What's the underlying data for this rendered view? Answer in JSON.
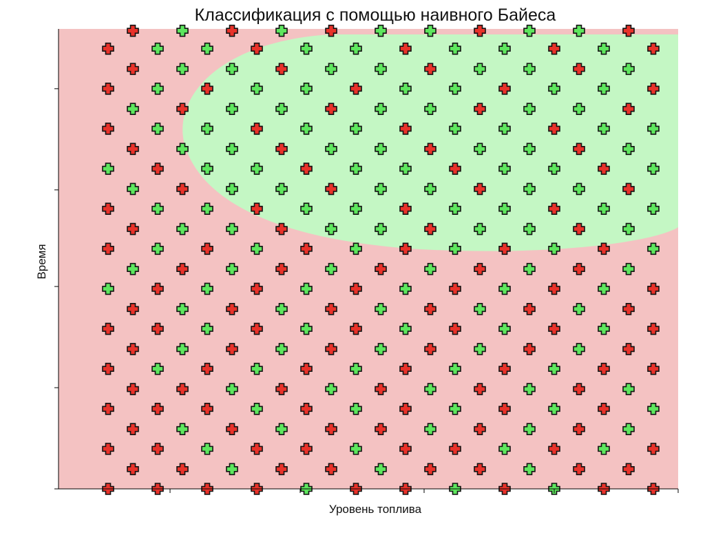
{
  "chart_data": {
    "type": "scatter",
    "title": "Классификация с помощью наивного Байеса",
    "x_label": "Уровень топлива",
    "y_label": "Время",
    "xlim": [
      0,
      100
    ],
    "ylim": [
      0,
      100
    ],
    "xticks": [
      18,
      39,
      59,
      80,
      100
    ],
    "yticks": [
      0,
      22,
      44,
      65,
      87
    ],
    "series": [
      {
        "color": "#e8322a",
        "x": [
          8,
          16,
          24,
          32,
          48,
          56,
          72,
          88,
          96,
          12,
          20,
          36,
          44,
          60,
          68,
          84,
          92,
          8,
          16,
          32,
          40,
          56,
          64,
          80,
          96,
          12,
          28,
          44,
          52,
          68,
          84,
          8,
          16,
          24,
          40,
          56,
          72,
          88,
          12,
          20,
          36,
          52,
          68,
          84,
          8,
          24,
          40,
          56,
          72,
          88,
          96,
          12,
          28,
          44,
          60,
          76,
          92,
          8,
          16,
          32,
          48,
          64,
          80,
          96,
          12,
          28,
          44,
          60,
          76,
          92,
          16,
          32,
          48,
          64,
          80,
          96,
          20,
          36,
          52,
          68,
          84,
          8,
          24,
          40,
          56,
          72,
          88,
          12,
          36,
          60,
          84,
          8,
          32,
          56,
          80,
          20,
          44,
          68,
          92,
          16,
          40,
          64,
          88,
          12,
          36,
          60,
          84,
          8,
          32,
          56,
          80,
          20,
          44,
          68,
          92,
          8,
          24,
          48,
          72,
          96,
          12,
          36,
          60,
          84,
          8,
          32,
          56,
          80,
          96,
          12,
          28,
          44,
          68,
          92
        ],
        "values": [
          0,
          0,
          0,
          0,
          0,
          0,
          0,
          0,
          0,
          4.3,
          4.3,
          4.3,
          4.3,
          4.3,
          4.3,
          4.3,
          4.3,
          8.7,
          8.7,
          8.7,
          8.7,
          8.7,
          8.7,
          8.7,
          8.7,
          13,
          13,
          13,
          13,
          13,
          13,
          17.4,
          17.4,
          17.4,
          17.4,
          17.4,
          17.4,
          17.4,
          21.7,
          21.7,
          21.7,
          21.7,
          21.7,
          21.7,
          26.1,
          26.1,
          26.1,
          26.1,
          26.1,
          26.1,
          26.1,
          30.4,
          30.4,
          30.4,
          30.4,
          30.4,
          30.4,
          34.8,
          34.8,
          34.8,
          34.8,
          34.8,
          34.8,
          34.8,
          39.1,
          39.1,
          39.1,
          39.1,
          39.1,
          39.1,
          43.5,
          43.5,
          43.5,
          43.5,
          43.5,
          43.5,
          47.8,
          47.8,
          47.8,
          47.8,
          47.8,
          52.2,
          52.2,
          52.2,
          52.2,
          52.2,
          52.2,
          56.5,
          56.5,
          56.5,
          56.5,
          60.9,
          60.9,
          60.9,
          60.9,
          65.2,
          65.2,
          65.2,
          65.2,
          69.6,
          69.6,
          69.6,
          69.6,
          73.9,
          73.9,
          73.9,
          73.9,
          78.3,
          78.3,
          78.3,
          78.3,
          82.6,
          82.6,
          82.6,
          82.6,
          87,
          87,
          87,
          87,
          87,
          91.3,
          91.3,
          91.3,
          91.3,
          95.7,
          95.7,
          95.7,
          95.7,
          95.7,
          99.6,
          99.6,
          99.6,
          99.6,
          99.6
        ]
      },
      {
        "color": "#5ee65e",
        "x": [
          40,
          64,
          80,
          28,
          52,
          76,
          24,
          48,
          72,
          88,
          20,
          36,
          60,
          76,
          92,
          32,
          48,
          64,
          80,
          96,
          28,
          44,
          60,
          76,
          92,
          16,
          32,
          48,
          64,
          80,
          20,
          36,
          52,
          68,
          84,
          24,
          40,
          56,
          72,
          88,
          20,
          36,
          52,
          68,
          84,
          8,
          24,
          40,
          56,
          72,
          88,
          12,
          28,
          44,
          60,
          76,
          92,
          16,
          32,
          48,
          64,
          80,
          96,
          20,
          28,
          44,
          52,
          68,
          76,
          92,
          16,
          24,
          40,
          48,
          64,
          72,
          88,
          96,
          12,
          28,
          36,
          52,
          60,
          76,
          84,
          8,
          24,
          32,
          48,
          56,
          72,
          80,
          96,
          20,
          28,
          44,
          52,
          68,
          76,
          92,
          16,
          24,
          40,
          48,
          64,
          72,
          88,
          96,
          12,
          28,
          36,
          52,
          60,
          76,
          84,
          16,
          32,
          40,
          56,
          64,
          80,
          88,
          20,
          28,
          44,
          52,
          68,
          76,
          92,
          16,
          24,
          40,
          48,
          64,
          72,
          88,
          20,
          36,
          52,
          60,
          76,
          84
        ],
        "values": [
          0,
          0,
          0,
          4.3,
          4.3,
          4.3,
          8.7,
          8.7,
          8.7,
          8.7,
          13,
          13,
          13,
          13,
          13,
          17.4,
          17.4,
          17.4,
          17.4,
          17.4,
          21.7,
          21.7,
          21.7,
          21.7,
          21.7,
          26.1,
          26.1,
          26.1,
          26.1,
          26.1,
          30.4,
          30.4,
          30.4,
          30.4,
          30.4,
          34.8,
          34.8,
          34.8,
          34.8,
          34.8,
          39.1,
          39.1,
          39.1,
          39.1,
          39.1,
          43.5,
          43.5,
          43.5,
          43.5,
          43.5,
          43.5,
          47.8,
          47.8,
          47.8,
          47.8,
          47.8,
          47.8,
          52.2,
          52.2,
          52.2,
          52.2,
          52.2,
          52.2,
          56.5,
          56.5,
          56.5,
          56.5,
          56.5,
          56.5,
          56.5,
          60.9,
          60.9,
          60.9,
          60.9,
          60.9,
          60.9,
          60.9,
          60.9,
          65.2,
          65.2,
          65.2,
          65.2,
          65.2,
          65.2,
          65.2,
          69.6,
          69.6,
          69.6,
          69.6,
          69.6,
          69.6,
          69.6,
          69.6,
          73.9,
          73.9,
          73.9,
          73.9,
          73.9,
          73.9,
          73.9,
          78.3,
          78.3,
          78.3,
          78.3,
          78.3,
          78.3,
          78.3,
          78.3,
          82.6,
          82.6,
          82.6,
          82.6,
          82.6,
          82.6,
          82.6,
          87,
          87,
          87,
          87,
          87,
          87,
          87,
          91.3,
          91.3,
          91.3,
          91.3,
          91.3,
          91.3,
          91.3,
          95.7,
          95.7,
          95.7,
          95.7,
          95.7,
          95.7,
          95.7,
          99.6,
          99.6,
          99.6,
          99.6,
          99.6,
          99.6
        ]
      }
    ]
  }
}
